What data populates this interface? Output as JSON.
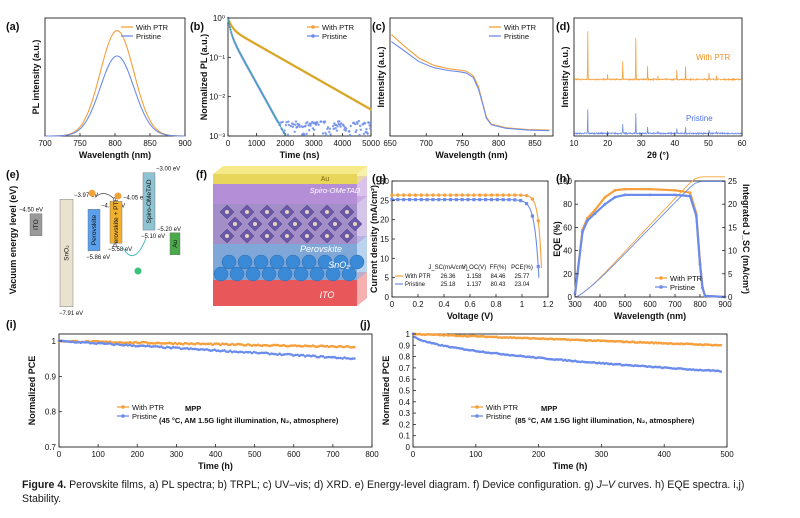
{
  "colors": {
    "ptr": "#F5A03C",
    "pristine": "#6B8CEB",
    "ptr_dark": "#F29020",
    "pristine_dark": "#4F74E8",
    "axis": "#222222"
  },
  "caption": {
    "figure_label": "Figure 4.",
    "text_before_jv": "Perovskite films, a) PL spectra; b) TRPL; c) UV–vis; d) XRD. e) Energy-level diagram. f) Device configuration. g)",
    "jv_italic": "J–V",
    "text_after_jv": "curves. h) EQE spectra. i,j) Stability."
  },
  "chart_data": [
    {
      "id": "a",
      "panel_label": "(a)",
      "type": "line",
      "xlabel": "Wavelength (nm)",
      "ylabel": "PL intensity (a.u.)",
      "xlim": [
        700,
        900
      ],
      "xticks": [
        700,
        750,
        800,
        850,
        900
      ],
      "ylim": [
        0,
        1.12
      ],
      "legend": [
        "With PTR",
        "Pristine"
      ],
      "series": [
        {
          "name": "With PTR",
          "center": 803,
          "sigma": 24,
          "amp": 1.0
        },
        {
          "name": "Pristine",
          "center": 803,
          "sigma": 24,
          "amp": 0.76
        }
      ]
    },
    {
      "id": "b",
      "panel_label": "(b)",
      "type": "line",
      "xlabel": "Time (ns)",
      "ylabel": "Normalized PL (a.u.)",
      "xlim": [
        0,
        5000
      ],
      "xticks": [
        0,
        1000,
        2000,
        3000,
        4000,
        5000
      ],
      "yscale": "log",
      "ylim": [
        0.001,
        1
      ],
      "ytick_labels": [
        "10⁰",
        "10⁻¹",
        "10⁻²",
        "10⁻³"
      ],
      "legend": [
        "With PTR",
        "Pristine"
      ],
      "series": [
        {
          "name": "With PTR",
          "tau_fast": 110,
          "frac_fast": 0.45,
          "tau_slow": 1050,
          "noise_floor": 0.0012
        },
        {
          "name": "Pristine",
          "tau_fast": 70,
          "frac_fast": 0.55,
          "tau_slow": 330,
          "noise_floor": 0.0012
        }
      ]
    },
    {
      "id": "c",
      "panel_label": "(c)",
      "type": "line",
      "xlabel": "Wavelength (nm)",
      "ylabel": "Intensity (a.u.)",
      "xlim": [
        650,
        875
      ],
      "xticks": [
        650,
        700,
        750,
        800,
        850
      ],
      "legend": [
        "With PTR",
        "Pristine"
      ],
      "series": [
        {
          "name": "With PTR",
          "points": [
            [
              652,
              0.86
            ],
            [
              670,
              0.76
            ],
            [
              690,
              0.66
            ],
            [
              710,
              0.6
            ],
            [
              730,
              0.57
            ],
            [
              745,
              0.56
            ],
            [
              755,
              0.55
            ],
            [
              765,
              0.51
            ],
            [
              772,
              0.42
            ],
            [
              778,
              0.28
            ],
            [
              783,
              0.16
            ],
            [
              790,
              0.1
            ],
            [
              810,
              0.07
            ],
            [
              840,
              0.055
            ],
            [
              870,
              0.05
            ]
          ]
        },
        {
          "name": "Pristine",
          "points": [
            [
              652,
              0.8
            ],
            [
              670,
              0.72
            ],
            [
              690,
              0.63
            ],
            [
              710,
              0.58
            ],
            [
              730,
              0.555
            ],
            [
              745,
              0.545
            ],
            [
              755,
              0.535
            ],
            [
              765,
              0.495
            ],
            [
              772,
              0.4
            ],
            [
              778,
              0.27
            ],
            [
              783,
              0.15
            ],
            [
              790,
              0.095
            ],
            [
              810,
              0.065
            ],
            [
              840,
              0.05
            ],
            [
              870,
              0.045
            ]
          ]
        }
      ]
    },
    {
      "id": "d",
      "panel_label": "(d)",
      "type": "line",
      "xlabel": "2θ (°)",
      "ylabel": "Intensity (a.u.)",
      "xlim": [
        10,
        60
      ],
      "xticks": [
        10,
        20,
        30,
        40,
        50,
        60
      ],
      "series_labels": [
        "With PTR",
        "Pristine"
      ],
      "peaks": [
        [
          14.1,
          1.0
        ],
        [
          20.0,
          0.1
        ],
        [
          24.5,
          0.38
        ],
        [
          28.4,
          0.85
        ],
        [
          31.9,
          0.28
        ],
        [
          35.0,
          0.09
        ],
        [
          40.6,
          0.2
        ],
        [
          43.2,
          0.26
        ],
        [
          50.2,
          0.14
        ],
        [
          52.4,
          0.07
        ]
      ]
    },
    {
      "id": "e",
      "panel_label": "(e)",
      "type": "diagram",
      "ylabel": "Vacuum energy level (eV)",
      "layers": [
        {
          "name": "ITO",
          "top": -4.5,
          "bottom": null,
          "top_label": "−4.50 eV"
        },
        {
          "name": "SnO₂",
          "top": -3.97,
          "bottom": -7.91,
          "top_label": "−3.97 eV",
          "bottom_label": "−7.91 eV"
        },
        {
          "name": "Perovskite",
          "top": -4.34,
          "bottom": -5.86,
          "top_label": "−4.34 eV",
          "bottom_label": "−5.86 eV"
        },
        {
          "name": "Perovskite + PTR",
          "top": -4.05,
          "bottom": -5.58,
          "top_label": "−4.05 eV",
          "bottom_label": "−5.58 eV"
        },
        {
          "name": "Spiro-OMeTAD",
          "top": -3.0,
          "bottom": -5.1,
          "top_label": "−3.00 eV",
          "bottom_label": "−5.10 eV"
        },
        {
          "name": "Au",
          "top": -5.2,
          "bottom": null,
          "top_label": "−5.20 eV"
        }
      ]
    },
    {
      "id": "f",
      "panel_label": "(f)",
      "type": "diagram",
      "layers": [
        "Au",
        "Spiro-OMeTAD",
        "Perovskite",
        "SnO₂",
        "ITO"
      ]
    },
    {
      "id": "g",
      "panel_label": "(g)",
      "type": "line",
      "xlabel": "Voltage (V)",
      "ylabel": "Current density (mA/cm²)",
      "xlim": [
        0,
        1.2
      ],
      "xticks": [
        0,
        0.2,
        0.4,
        0.6,
        0.8,
        1.0,
        1.2
      ],
      "ylim": [
        0,
        30
      ],
      "yticks": [
        0,
        5,
        10,
        15,
        20,
        25,
        30
      ],
      "table_headers": [
        "J_SC(mA/cm²)",
        "V_OC(V)",
        "FF(%)",
        "PCE(%)"
      ],
      "series": [
        {
          "name": "With PTR",
          "jsc": 26.36,
          "voc": 1.158,
          "ff": 84.46,
          "pce": 25.77,
          "row": [
            "26.36",
            "1.158",
            "84.46",
            "25.77"
          ]
        },
        {
          "name": "Pristine",
          "jsc": 25.18,
          "voc": 1.137,
          "ff": 80.43,
          "pce": 23.04,
          "row": [
            "25.18",
            "1.137",
            "80.43",
            "23.04"
          ]
        }
      ]
    },
    {
      "id": "h",
      "panel_label": "(h)",
      "type": "line",
      "xlabel": "Wavelength (nm)",
      "ylabel": "EQE (%)",
      "y2label": "Integrated J_SC (mA/cm²)",
      "xlim": [
        300,
        900
      ],
      "xticks": [
        300,
        400,
        500,
        600,
        700,
        800,
        900
      ],
      "ylim": [
        0,
        100
      ],
      "yticks": [
        0,
        20,
        40,
        60,
        80,
        100
      ],
      "y2lim": [
        0,
        25
      ],
      "y2ticks": [
        0,
        5,
        10,
        15,
        20,
        25
      ],
      "legend": [
        "With PTR",
        "Pristine"
      ],
      "series": [
        {
          "name": "With PTR",
          "eqe_points": [
            [
              300,
              3
            ],
            [
              310,
              20
            ],
            [
              330,
              58
            ],
            [
              350,
              68
            ],
            [
              380,
              75
            ],
            [
              420,
              86
            ],
            [
              460,
              92
            ],
            [
              500,
              93
            ],
            [
              600,
              93
            ],
            [
              700,
              92
            ],
            [
              760,
              90
            ],
            [
              785,
              72
            ],
            [
              800,
              30
            ],
            [
              810,
              8
            ],
            [
              820,
              1
            ],
            [
              900,
              0
            ]
          ],
          "jsc_final": 25.9
        },
        {
          "name": "Pristine",
          "eqe_points": [
            [
              300,
              3
            ],
            [
              310,
              20
            ],
            [
              330,
              56
            ],
            [
              350,
              66
            ],
            [
              380,
              72
            ],
            [
              420,
              80
            ],
            [
              460,
              86
            ],
            [
              500,
              88
            ],
            [
              600,
              88
            ],
            [
              700,
              88
            ],
            [
              760,
              87
            ],
            [
              785,
              70
            ],
            [
              800,
              28
            ],
            [
              810,
              8
            ],
            [
              820,
              1
            ],
            [
              900,
              0
            ]
          ],
          "jsc_final": 24.9
        }
      ]
    },
    {
      "id": "i",
      "panel_label": "(i)",
      "type": "scatter",
      "xlabel": "Time (h)",
      "ylabel": "Normalized PCE",
      "xlim": [
        0,
        800
      ],
      "xticks": [
        0,
        100,
        200,
        300,
        400,
        500,
        600,
        700,
        800
      ],
      "ylim": [
        0.7,
        1.02
      ],
      "yticks": [
        0.7,
        0.8,
        0.9,
        1.0
      ],
      "legend": [
        "With PTR",
        "Pristine"
      ],
      "annotation_title": "MPP",
      "annotation_text": "(45 °C, AM 1.5G light illumination, N₂, atmosphere)",
      "series": [
        {
          "name": "With PTR",
          "start": 1.0,
          "end": 0.983,
          "duration": 755
        },
        {
          "name": "Pristine",
          "start": 1.0,
          "end": 0.95,
          "duration": 755
        }
      ]
    },
    {
      "id": "j",
      "panel_label": "(j)",
      "type": "scatter",
      "xlabel": "Time (h)",
      "ylabel": "Normalized PCE",
      "xlim": [
        0,
        500
      ],
      "xticks": [
        0,
        100,
        200,
        300,
        400,
        500
      ],
      "ylim": [
        0,
        1.0
      ],
      "yticks": [
        0,
        0.1,
        0.2,
        0.3,
        0.4,
        0.5,
        0.6,
        0.7,
        0.8,
        0.9,
        1.0
      ],
      "legend": [
        "With PTR",
        "Pristine"
      ],
      "annotation_title": "MPP",
      "annotation_text": "(85 °C, AM 1.5G light illumination, N₂, atmosphere)",
      "series": [
        {
          "name": "With PTR",
          "start": 1.0,
          "end": 0.9,
          "duration": 490
        },
        {
          "name": "Pristine",
          "start": 1.0,
          "end": 0.67,
          "duration": 490
        }
      ]
    }
  ]
}
